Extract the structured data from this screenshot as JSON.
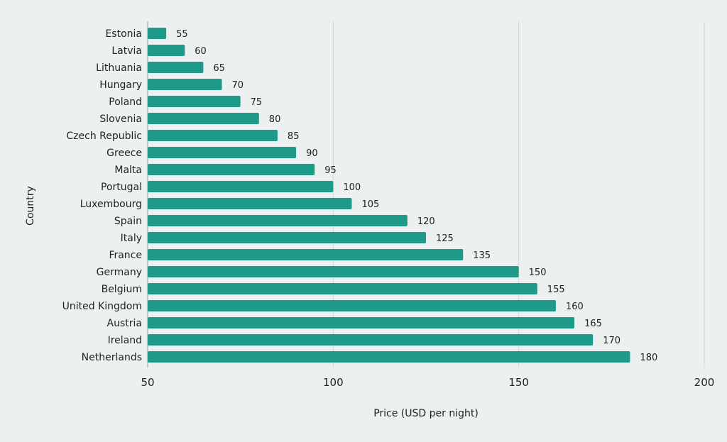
{
  "chart_data": {
    "type": "bar",
    "orientation": "horizontal",
    "categories": [
      "Estonia",
      "Latvia",
      "Lithuania",
      "Hungary",
      "Poland",
      "Slovenia",
      "Czech Republic",
      "Greece",
      "Malta",
      "Portugal",
      "Luxembourg",
      "Spain",
      "Italy",
      "France",
      "Germany",
      "Belgium",
      "United Kingdom",
      "Austria",
      "Ireland",
      "Netherlands"
    ],
    "values": [
      55,
      60,
      65,
      70,
      75,
      80,
      85,
      90,
      95,
      100,
      105,
      120,
      125,
      135,
      150,
      155,
      160,
      165,
      170,
      180
    ],
    "xlabel": "Price (USD per night)",
    "ylabel": "Country",
    "xlim": [
      50,
      200
    ],
    "xticks": [
      "50",
      "100",
      "150",
      "200"
    ],
    "grid": "vertical",
    "data_labels": true,
    "bar_color": "#1f9a89",
    "background": "#ecf0f1"
  }
}
